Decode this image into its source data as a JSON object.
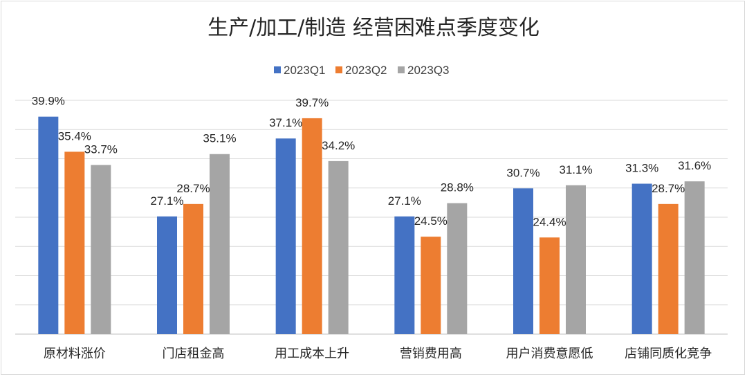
{
  "chart_data": {
    "type": "bar",
    "title": "生产/加工/制造 经营困难点季度变化",
    "categories": [
      "原材料涨价",
      "门店租金高",
      "用工成本上升",
      "营销费用高",
      "用户消费意愿低",
      "店铺同质化竞争"
    ],
    "series": [
      {
        "name": "2023Q1",
        "color": "#4472C4",
        "values": [
          39.9,
          27.1,
          37.1,
          27.1,
          30.7,
          31.3
        ],
        "labels": [
          "39.9%",
          "27.1%",
          "37.1%",
          "27.1%",
          "30.7%",
          "31.3%"
        ]
      },
      {
        "name": "2023Q2",
        "color": "#ED7D31",
        "values": [
          35.4,
          28.7,
          39.7,
          24.5,
          24.4,
          28.7
        ],
        "labels": [
          "35.4%",
          "28.7%",
          "39.7%",
          "24.5%",
          "24.4%",
          "28.7%"
        ]
      },
      {
        "name": "2023Q3",
        "color": "#A5A5A5",
        "values": [
          33.7,
          35.1,
          34.2,
          28.8,
          31.1,
          31.6
        ],
        "labels": [
          "33.7%",
          "35.1%",
          "34.2%",
          "28.8%",
          "31.1%",
          "31.6%"
        ]
      }
    ],
    "ylim": [
      12,
      42
    ],
    "ytick_step": 3.75,
    "y_ticks_visible": false,
    "grid": true,
    "legend_position": "top"
  }
}
